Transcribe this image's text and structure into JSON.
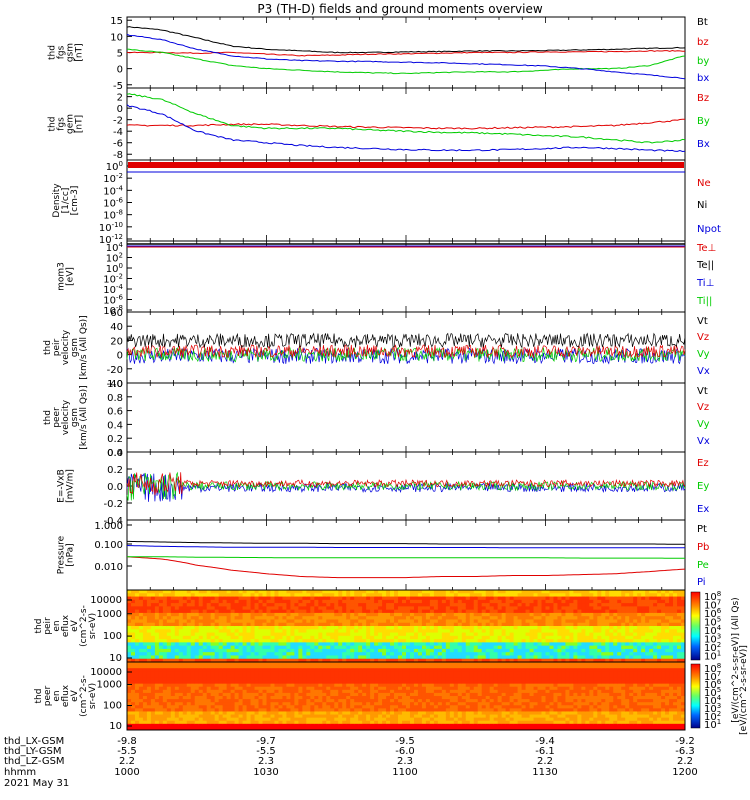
{
  "title": "P3 (TH-D) fields and ground moments overview",
  "chart_data": [
    {
      "type": "line",
      "ylabel": [
        "thd",
        "fgs",
        "gsm",
        "[nT]"
      ],
      "yticks": [
        15,
        10,
        5,
        0,
        -5
      ],
      "ylim": [
        -6,
        16
      ],
      "series": [
        {
          "name": "Bt",
          "color": "#000000",
          "values": [
            13.0,
            12.0,
            9.5,
            7.0,
            6.0,
            5.5,
            5.0,
            5.0,
            5.2,
            5.3,
            5.5,
            5.5,
            5.6,
            5.8,
            6.0,
            6.3,
            6.5
          ]
        },
        {
          "name": "bz",
          "color": "#e00000",
          "values": [
            5.0,
            5.0,
            4.8,
            5.0,
            4.5,
            4.0,
            4.2,
            4.5,
            4.6,
            4.8,
            5.0,
            5.0,
            5.2,
            5.2,
            5.3,
            5.5,
            5.5
          ]
        },
        {
          "name": "by",
          "color": "#00cc00",
          "values": [
            6.0,
            5.0,
            3.0,
            1.0,
            0.0,
            -0.5,
            -1.0,
            -1.3,
            -1.5,
            -1.2,
            -1.0,
            -1.0,
            -0.5,
            0.0,
            0.0,
            1.0,
            4.0
          ]
        },
        {
          "name": "bx",
          "color": "#0000dd",
          "values": [
            10.5,
            9.0,
            6.0,
            4.0,
            3.0,
            2.5,
            2.3,
            2.2,
            2.0,
            1.8,
            1.5,
            1.2,
            0.8,
            0.0,
            -1.0,
            -2.0,
            -3.0
          ]
        }
      ]
    },
    {
      "type": "line",
      "ylabel": [
        "thd",
        "fgs",
        "gem",
        "[nT]"
      ],
      "yticks": [
        2,
        0,
        -2,
        -4,
        -6,
        -8
      ],
      "ylim": [
        -9,
        3.5
      ],
      "series": [
        {
          "name": "Bz",
          "color": "#e00000",
          "values": [
            -3.0,
            -3.0,
            -3.0,
            -2.8,
            -2.8,
            -3.0,
            -3.2,
            -3.3,
            -3.4,
            -3.5,
            -3.5,
            -3.4,
            -3.3,
            -3.2,
            -3.0,
            -2.5,
            -2.0
          ]
        },
        {
          "name": "By",
          "color": "#00cc00",
          "values": [
            2.5,
            1.5,
            -1.0,
            -3.0,
            -3.5,
            -3.5,
            -3.5,
            -3.8,
            -4.0,
            -4.2,
            -4.3,
            -4.5,
            -4.8,
            -5.0,
            -5.5,
            -6.0,
            -5.5
          ]
        },
        {
          "name": "Bx",
          "color": "#0000dd",
          "values": [
            0.5,
            -1.0,
            -4.0,
            -5.5,
            -6.0,
            -6.5,
            -6.8,
            -7.0,
            -7.2,
            -7.3,
            -7.3,
            -7.2,
            -7.0,
            -6.8,
            -7.0,
            -7.3,
            -7.5
          ]
        }
      ]
    },
    {
      "type": "line",
      "yscale": "log",
      "ylabel": [
        "Density",
        "[1/cc]",
        "[cm-3]"
      ],
      "ytick_labels": [
        "10^0",
        "10^-2",
        "10^-4",
        "10^-6",
        "10^-8",
        "10^-10",
        "10^-12"
      ],
      "series_names": [
        "Ne",
        "Ni",
        "Npot"
      ],
      "series_colors": [
        "#e00000",
        "#000000",
        "#0000dd"
      ]
    },
    {
      "type": "line",
      "yscale": "log",
      "ylabel": [
        "mom3",
        "[eV]"
      ],
      "ytick_labels": [
        "10^4",
        "10^2",
        "10^0",
        "10^-2",
        "10^-4",
        "10^-6",
        "10^-8"
      ],
      "series_names": [
        "Te⊥",
        "Te||",
        "Ti⊥",
        "Ti||"
      ],
      "series_colors": [
        "#e00000",
        "#000000",
        "#0000dd",
        "#00cc00"
      ]
    },
    {
      "type": "line",
      "ylabel": [
        "thd",
        "peir",
        "velocity",
        "gsm",
        "[km/s (All Qs)]"
      ],
      "yticks": [
        60,
        40,
        20,
        0,
        -20,
        -40
      ],
      "ylim": [
        -40,
        60
      ],
      "series": [
        {
          "name": "Vt",
          "color": "#000000",
          "center": 20,
          "spread": 10
        },
        {
          "name": "Vz",
          "color": "#e00000",
          "center": 5,
          "spread": 9
        },
        {
          "name": "Vy",
          "color": "#00cc00",
          "center": 0,
          "spread": 10
        },
        {
          "name": "Vx",
          "color": "#0000dd",
          "center": -2,
          "spread": 11
        }
      ]
    },
    {
      "type": "line",
      "ylabel": [
        "thd",
        "peer",
        "velocity",
        "gsm",
        "[km/s (All Qs)]"
      ],
      "yticks": [
        1.0,
        0.8,
        0.6,
        0.4,
        0.2,
        0.0
      ],
      "ytick_labels": [
        "1.0",
        "0.8",
        "0.6",
        "0.4",
        "0.2",
        "0.0"
      ],
      "ylim": [
        0,
        1
      ],
      "series_names": [
        "Vt",
        "Vz",
        "Vy",
        "Vx"
      ],
      "series_colors": [
        "#000000",
        "#e00000",
        "#00cc00",
        "#0000dd"
      ]
    },
    {
      "type": "line",
      "ylabel": [
        "E=-VxB",
        "[mV/m]"
      ],
      "yticks": [
        0.4,
        0.2,
        0.0,
        -0.2,
        -0.4
      ],
      "ytick_labels": [
        "0.4",
        "0.2",
        "0.0",
        "-0.2",
        "-0.4"
      ],
      "ylim": [
        -0.4,
        0.4
      ],
      "series": [
        {
          "name": "Ez",
          "color": "#e00000",
          "center": 0.03,
          "spread": 0.04
        },
        {
          "name": "Ey",
          "color": "#00cc00",
          "center": 0.0,
          "spread": 0.05
        },
        {
          "name": "Ex",
          "color": "#0000dd",
          "center": -0.02,
          "spread": 0.05
        }
      ]
    },
    {
      "type": "line",
      "yscale": "log",
      "ylabel": [
        "Pressure",
        "[nPa]"
      ],
      "ytick_labels": [
        "1.000",
        "0.100",
        "0.010"
      ],
      "ylim": [
        0.004,
        1.2
      ],
      "series": [
        {
          "name": "Pt",
          "color": "#000000",
          "values": [
            0.21,
            0.2,
            0.19,
            0.185,
            0.18,
            0.18,
            0.175,
            0.175,
            0.175,
            0.17,
            0.17,
            0.17,
            0.17,
            0.17,
            0.17,
            0.17,
            0.165
          ]
        },
        {
          "name": "Pb",
          "color": "#e00000",
          "values": [
            0.06,
            0.05,
            0.03,
            0.02,
            0.015,
            0.012,
            0.011,
            0.011,
            0.011,
            0.012,
            0.012,
            0.013,
            0.013,
            0.014,
            0.015,
            0.018,
            0.022
          ]
        },
        {
          "name": "Pe",
          "color": "#00cc00",
          "values": [
            0.06,
            0.06,
            0.058,
            0.057,
            0.056,
            0.055,
            0.055,
            0.055,
            0.055,
            0.055,
            0.055,
            0.055,
            0.055,
            0.054,
            0.054,
            0.054,
            0.053
          ]
        },
        {
          "name": "Pi",
          "color": "#0000dd",
          "values": [
            0.15,
            0.14,
            0.135,
            0.13,
            0.13,
            0.13,
            0.128,
            0.128,
            0.128,
            0.128,
            0.128,
            0.125,
            0.125,
            0.125,
            0.125,
            0.125,
            0.125
          ]
        }
      ]
    },
    {
      "type": "heatmap",
      "ylabel": [
        "thd",
        "peir",
        "en",
        "eflux",
        "eV",
        "(cm^2-s-",
        "sr-eV)"
      ],
      "ytick_labels": [
        "10000",
        "1000",
        "100",
        "10"
      ]
    },
    {
      "type": "heatmap",
      "ylabel": [
        "thd",
        "peer",
        "en",
        "eflux",
        "eV",
        "(cm^2-s-",
        "sr-eV)"
      ],
      "ytick_labels": [
        "10000",
        "1000",
        "100",
        "10"
      ]
    }
  ],
  "colorbar": {
    "label": "[eV/(cm^2-s-sr-eV)] (All Qs)",
    "label_lower": "[eV/(cm^2-s-sr-eV)]",
    "ticks_upper": [
      "10^8",
      "10^7",
      "10^6",
      "10^5",
      "10^4",
      "10^3",
      "10^2",
      "10^1"
    ],
    "ticks_lower": [
      "10^8",
      "10^7",
      "10^6",
      "10^5",
      "10^4",
      "10^3",
      "10^2",
      "10^1"
    ]
  },
  "xaxis": {
    "row_labels": [
      "thd_LX-GSM",
      "thd_LY-GSM",
      "thd_LZ-GSM",
      "hhmm",
      "2021 May 31"
    ],
    "columns": [
      {
        "lx": "-9.8",
        "ly": "-5.5",
        "lz": "2.2",
        "time": "1000"
      },
      {
        "lx": "-9.7",
        "ly": "-5.5",
        "lz": "2.3",
        "time": "1030"
      },
      {
        "lx": "-9.5",
        "ly": "-6.0",
        "lz": "2.3",
        "time": "1100"
      },
      {
        "lx": "-9.4",
        "ly": "-6.1",
        "lz": "2.2",
        "time": "1130"
      },
      {
        "lx": "-9.2",
        "ly": "-6.3",
        "lz": "2.2",
        "time": "1200"
      }
    ]
  }
}
